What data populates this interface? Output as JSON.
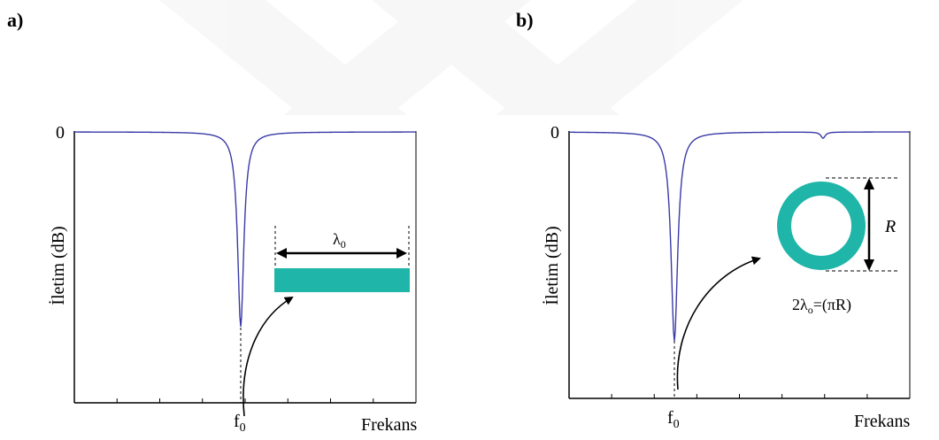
{
  "panels": [
    {
      "label": "a)",
      "y_zero_label": "0",
      "ylabel": "İletim (dB)",
      "xlabel": "Frekans",
      "f0_base": "f",
      "f0_sub": "0",
      "lambda_base": "λ",
      "lambda_sub": "0",
      "resonator": "straight-strip",
      "resonator_color": "#1fb5a8",
      "curve_color": "#3a3aa8"
    },
    {
      "label": "b)",
      "y_zero_label": "0",
      "ylabel": "İletim (dB)",
      "xlabel": "Frekans",
      "f0_base": "f",
      "f0_sub": "0",
      "r_label": "R",
      "formula_pre": "2λ",
      "formula_sub": "o",
      "formula_post": "=(πR)",
      "resonator": "ring",
      "resonator_color": "#1fb5a8",
      "curve_color": "#3a3aa8"
    }
  ]
}
